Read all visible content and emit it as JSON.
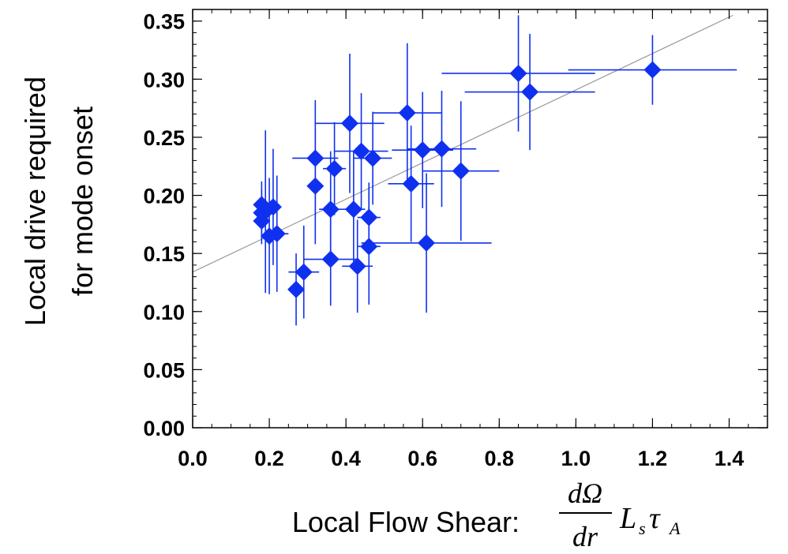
{
  "chart_data": {
    "type": "scatter",
    "xlabel": {
      "prefix": "Local Flow Shear:",
      "numerator": "dΩ",
      "denominator": "dr",
      "L": "L",
      "L_sub": "s",
      "tau": "τ",
      "tau_sub": "A"
    },
    "ylabel": [
      "Local drive required",
      "for mode onset"
    ],
    "xlim": [
      0.0,
      1.5
    ],
    "ylim": [
      0.0,
      0.36
    ],
    "x_ticks": [
      "0.0",
      "0.2",
      "0.4",
      "0.6",
      "0.8",
      "1.0",
      "1.2",
      "1.4"
    ],
    "y_ticks": [
      "0.00",
      "0.05",
      "0.10",
      "0.15",
      "0.20",
      "0.25",
      "0.30",
      "0.35"
    ],
    "grid": false,
    "marker_color": "#1030f0",
    "fit_line": {
      "color": "#999999",
      "x": [
        0.0,
        1.41
      ],
      "y": [
        0.134,
        0.355
      ]
    },
    "points": [
      {
        "x": 0.18,
        "y": 0.192,
        "xerr": 0.02,
        "yerr": 0.02
      },
      {
        "x": 0.18,
        "y": 0.185,
        "xerr": 0.02,
        "yerr": 0.02
      },
      {
        "x": 0.18,
        "y": 0.178,
        "xerr": 0.02,
        "yerr": 0.02
      },
      {
        "x": 0.19,
        "y": 0.186,
        "xerr": 0.02,
        "yerr": 0.07
      },
      {
        "x": 0.2,
        "y": 0.165,
        "xerr": 0.02,
        "yerr": 0.05
      },
      {
        "x": 0.21,
        "y": 0.19,
        "xerr": 0.02,
        "yerr": 0.05
      },
      {
        "x": 0.22,
        "y": 0.167,
        "xerr": 0.03,
        "yerr": 0.05
      },
      {
        "x": 0.27,
        "y": 0.119,
        "xerr": 0.02,
        "yerr": 0.031
      },
      {
        "x": 0.29,
        "y": 0.134,
        "xerr": 0.04,
        "yerr": 0.04
      },
      {
        "x": 0.32,
        "y": 0.232,
        "xerr": 0.06,
        "yerr": 0.05
      },
      {
        "x": 0.32,
        "y": 0.208,
        "xerr": 0.02,
        "yerr": 0.05
      },
      {
        "x": 0.36,
        "y": 0.145,
        "xerr": 0.07,
        "yerr": 0.04
      },
      {
        "x": 0.36,
        "y": 0.188,
        "xerr": 0.03,
        "yerr": 0.05
      },
      {
        "x": 0.37,
        "y": 0.223,
        "xerr": 0.03,
        "yerr": 0.04
      },
      {
        "x": 0.41,
        "y": 0.262,
        "xerr": 0.09,
        "yerr": 0.06
      },
      {
        "x": 0.42,
        "y": 0.188,
        "xerr": 0.03,
        "yerr": 0.05
      },
      {
        "x": 0.43,
        "y": 0.139,
        "xerr": 0.04,
        "yerr": 0.04
      },
      {
        "x": 0.44,
        "y": 0.238,
        "xerr": 0.07,
        "yerr": 0.05
      },
      {
        "x": 0.46,
        "y": 0.181,
        "xerr": 0.03,
        "yerr": 0.03
      },
      {
        "x": 0.46,
        "y": 0.156,
        "xerr": 0.03,
        "yerr": 0.05
      },
      {
        "x": 0.47,
        "y": 0.232,
        "xerr": 0.05,
        "yerr": 0.04
      },
      {
        "x": 0.56,
        "y": 0.271,
        "xerr": 0.09,
        "yerr": 0.06
      },
      {
        "x": 0.57,
        "y": 0.21,
        "xerr": 0.06,
        "yerr": 0.05
      },
      {
        "x": 0.6,
        "y": 0.239,
        "xerr": 0.08,
        "yerr": 0.05
      },
      {
        "x": 0.61,
        "y": 0.159,
        "xerr": 0.17,
        "yerr": 0.06
      },
      {
        "x": 0.65,
        "y": 0.24,
        "xerr": 0.09,
        "yerr": 0.05
      },
      {
        "x": 0.7,
        "y": 0.221,
        "xerr": 0.1,
        "yerr": 0.06
      },
      {
        "x": 0.85,
        "y": 0.305,
        "xerr": 0.2,
        "yerr": 0.05
      },
      {
        "x": 0.88,
        "y": 0.289,
        "xerr": 0.17,
        "yerr": 0.05
      },
      {
        "x": 1.2,
        "y": 0.308,
        "xerr": 0.22,
        "yerr": 0.03
      }
    ]
  }
}
